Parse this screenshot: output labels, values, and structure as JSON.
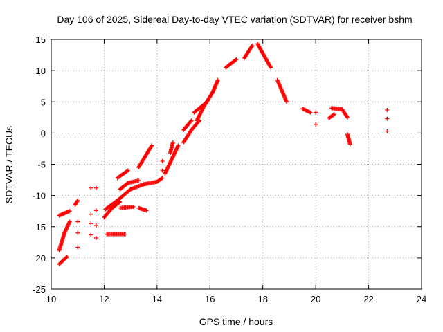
{
  "chart_data": {
    "type": "scatter",
    "title": "Day 106 of 2025, Sidereal Day-to-day VTEC variation (SDTVAR) for receiver bshm",
    "xlabel": "GPS time / hours",
    "ylabel": "SDTVAR / TECUs",
    "xlim": [
      10,
      24
    ],
    "ylim": [
      -25,
      15
    ],
    "xticks": [
      10,
      12,
      14,
      16,
      18,
      20,
      22,
      24
    ],
    "yticks": [
      -25,
      -20,
      -15,
      -10,
      -5,
      0,
      5,
      10,
      15
    ],
    "xtick_labels": [
      "10",
      "12",
      "14",
      "16",
      "18",
      "20",
      "22",
      "24"
    ],
    "ytick_labels": [
      "-25",
      "-20",
      "-15",
      "-10",
      "-5",
      "0",
      "5",
      "10",
      "15"
    ],
    "grid": true,
    "marker": "+",
    "color": "#ff0000",
    "series": [
      {
        "name": "track-main-rise",
        "segments": [
          [
            [
              12.05,
              -12.2
            ],
            [
              12.5,
              -10.8
            ],
            [
              13.0,
              -9.0
            ],
            [
              13.5,
              -8.2
            ],
            [
              14.0,
              -7.8
            ],
            [
              14.2,
              -7.2
            ]
          ],
          [
            [
              14.3,
              -6.5
            ],
            [
              14.6,
              -3.8
            ],
            [
              14.8,
              -2.0
            ]
          ],
          [
            [
              15.0,
              -1.5
            ],
            [
              15.3,
              0.5
            ],
            [
              15.6,
              2.0
            ]
          ],
          [
            [
              15.5,
              2.0
            ],
            [
              15.8,
              4.5
            ],
            [
              16.1,
              6.5
            ],
            [
              16.3,
              8.5
            ]
          ],
          [
            [
              16.6,
              10.5
            ],
            [
              17.0,
              11.8
            ]
          ],
          [
            [
              17.3,
              12.0
            ],
            [
              17.6,
              14.0
            ]
          ],
          [
            [
              17.8,
              14.3
            ],
            [
              18.1,
              12.0
            ],
            [
              18.3,
              10.5
            ]
          ],
          [
            [
              18.55,
              8.5
            ],
            [
              18.9,
              5.0
            ]
          ]
        ]
      },
      {
        "name": "track-low-a",
        "segments": [
          [
            [
              10.3,
              -21.0
            ],
            [
              10.6,
              -19.8
            ]
          ],
          [
            [
              10.3,
              -18.8
            ],
            [
              10.5,
              -16.0
            ],
            [
              10.7,
              -14.2
            ]
          ],
          [
            [
              10.3,
              -13.2
            ],
            [
              10.7,
              -12.5
            ]
          ],
          [
            [
              10.9,
              -11.5
            ],
            [
              11.0,
              -10.8
            ]
          ]
        ]
      },
      {
        "name": "track-mid-b",
        "segments": [
          [
            [
              12.0,
              -13.5
            ],
            [
              12.3,
              -12.0
            ],
            [
              12.6,
              -11.0
            ]
          ],
          [
            [
              12.6,
              -9.0
            ],
            [
              12.9,
              -8.0
            ],
            [
              13.3,
              -7.6
            ]
          ],
          [
            [
              12.6,
              -12.0
            ],
            [
              13.1,
              -11.8
            ]
          ],
          [
            [
              13.3,
              -12.0
            ],
            [
              13.6,
              -12.4
            ]
          ],
          [
            [
              12.1,
              -16.2
            ],
            [
              12.8,
              -16.2
            ]
          ]
        ]
      },
      {
        "name": "track-mid-c",
        "segments": [
          [
            [
              12.5,
              -7.2
            ],
            [
              12.9,
              -6.0
            ]
          ],
          [
            [
              13.3,
              -5.5
            ],
            [
              13.8,
              -2.0
            ]
          ],
          [
            [
              14.5,
              -3.2
            ],
            [
              14.6,
              -1.5
            ]
          ],
          [
            [
              15.4,
              3.3
            ],
            [
              15.9,
              5.0
            ]
          ],
          [
            [
              15.0,
              0.5
            ],
            [
              15.3,
              2.0
            ]
          ]
        ]
      },
      {
        "name": "track-late",
        "segments": [
          [
            [
              19.5,
              3.9
            ],
            [
              19.8,
              3.3
            ]
          ],
          [
            [
              20.5,
              2.4
            ],
            [
              20.7,
              3.0
            ]
          ],
          [
            [
              20.6,
              4.0
            ],
            [
              21.0,
              3.8
            ],
            [
              21.2,
              2.5
            ]
          ],
          [
            [
              21.2,
              -0.2
            ],
            [
              21.3,
              -1.8
            ]
          ]
        ]
      },
      {
        "name": "isolated",
        "points": [
          [
            11.5,
            -8.8
          ],
          [
            11.7,
            -8.8
          ],
          [
            11.5,
            -13.0
          ],
          [
            11.7,
            -12.4
          ],
          [
            11.5,
            -14.5
          ],
          [
            11.7,
            -14.8
          ],
          [
            11.5,
            -16.3
          ],
          [
            11.7,
            -16.8
          ],
          [
            11.0,
            -14.2
          ],
          [
            11.0,
            -16.0
          ],
          [
            11.0,
            -18.3
          ],
          [
            14.2,
            -4.5
          ],
          [
            14.2,
            -6.0
          ],
          [
            20.0,
            3.3
          ],
          [
            20.0,
            1.4
          ],
          [
            22.7,
            3.7
          ],
          [
            22.7,
            2.3
          ],
          [
            22.7,
            0.3
          ]
        ]
      }
    ]
  }
}
